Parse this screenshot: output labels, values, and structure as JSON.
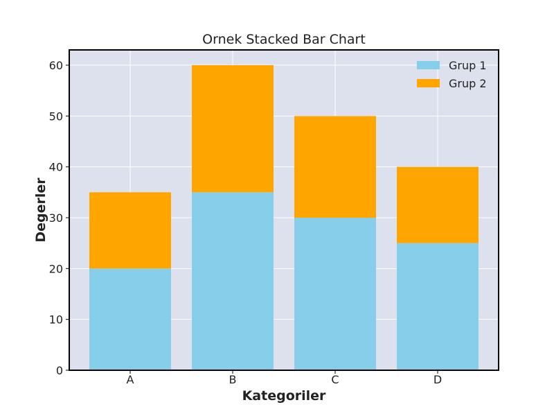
{
  "chart_data": {
    "type": "bar",
    "stacked": true,
    "title": "Ornek Stacked Bar Chart",
    "xlabel": "Kategoriler",
    "ylabel": "Degerler",
    "categories": [
      "A",
      "B",
      "C",
      "D"
    ],
    "series": [
      {
        "name": "Grup 1",
        "values": [
          20,
          35,
          30,
          25
        ],
        "color": "#87CEEB"
      },
      {
        "name": "Grup 2",
        "values": [
          15,
          25,
          20,
          15
        ],
        "color": "#FFA500"
      }
    ],
    "ylim": [
      0,
      63
    ],
    "yticks": [
      0,
      10,
      20,
      30,
      40,
      50,
      60
    ],
    "grid": true,
    "legend_position": "top-right",
    "background_color": "#DCE1ED",
    "grid_color": "#FFFFFF"
  }
}
